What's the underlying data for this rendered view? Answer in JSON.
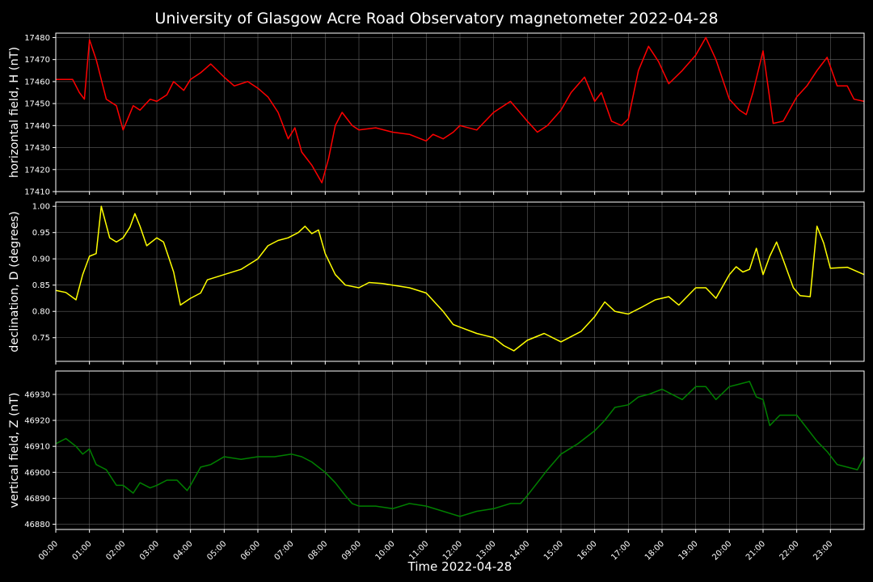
{
  "chart_data": {
    "type": "line",
    "title": "University of Glasgow Acre Road Observatory magnetometer 2022-04-28",
    "xlabel": "Time 2022-04-28",
    "x_unit": "hours",
    "xlim": [
      0,
      24
    ],
    "x_tick_labels": [
      "00:00",
      "01:00",
      "02:00",
      "03:00",
      "04:00",
      "05:00",
      "06:00",
      "07:00",
      "08:00",
      "09:00",
      "10:00",
      "11:00",
      "12:00",
      "13:00",
      "14:00",
      "15:00",
      "16:00",
      "17:00",
      "18:00",
      "19:00",
      "20:00",
      "21:00",
      "22:00",
      "23:00"
    ],
    "grid": true,
    "background": "#000000",
    "panels": [
      {
        "ylabel": "horizontal field, H (nT)",
        "color": "#ff0000",
        "ylim": [
          17410,
          17482
        ],
        "y_ticks": [
          17410,
          17420,
          17430,
          17440,
          17450,
          17460,
          17470,
          17480
        ],
        "series": [
          {
            "x": [
              0,
              0.5,
              0.7,
              0.85,
              1.0,
              1.2,
              1.5,
              1.8,
              2.0,
              2.3,
              2.5,
              2.8,
              3.0,
              3.3,
              3.5,
              3.8,
              4.0,
              4.3,
              4.6,
              5.0,
              5.3,
              5.7,
              6.0,
              6.3,
              6.6,
              6.9,
              7.1,
              7.3,
              7.6,
              7.9,
              8.1,
              8.3,
              8.5,
              8.8,
              9.0,
              9.5,
              10,
              10.5,
              11,
              11.2,
              11.5,
              11.8,
              12.0,
              12.5,
              13.0,
              13.5,
              14.0,
              14.3,
              14.6,
              15.0,
              15.3,
              15.7,
              16.0,
              16.2,
              16.5,
              16.8,
              17.0,
              17.3,
              17.6,
              17.9,
              18.2,
              18.6,
              19.0,
              19.3,
              19.6,
              20.0,
              20.3,
              20.5,
              20.7,
              21.0,
              21.3,
              21.6,
              22.0,
              22.3,
              22.6,
              22.9,
              23.2,
              23.5,
              23.7,
              24.0
            ],
            "y": [
              17461,
              17461,
              17455,
              17452,
              17479,
              17470,
              17452,
              17449,
              17438,
              17449,
              17447,
              17452,
              17451,
              17454,
              17460,
              17456,
              17461,
              17464,
              17468,
              17462,
              17458,
              17460,
              17457,
              17453,
              17446,
              17434,
              17439,
              17428,
              17422,
              17414,
              17425,
              17440,
              17446,
              17440,
              17438,
              17439,
              17437,
              17436,
              17433,
              17436,
              17434,
              17437,
              17440,
              17438,
              17446,
              17451,
              17442,
              17437,
              17440,
              17447,
              17455,
              17462,
              17451,
              17455,
              17442,
              17440,
              17443,
              17465,
              17476,
              17469,
              17459,
              17465,
              17472,
              17480,
              17470,
              17452,
              17447,
              17445,
              17455,
              17474,
              17441,
              17442,
              17453,
              17458,
              17465,
              17471,
              17458,
              17458,
              17452,
              17451
            ]
          }
        ]
      },
      {
        "ylabel": "declination, D (degrees)",
        "color": "#ffff00",
        "ylim": [
          0.705,
          1.008
        ],
        "y_ticks": [
          0.75,
          0.8,
          0.85,
          0.9,
          0.95,
          1.0
        ],
        "y_tick_labels": [
          "0.75",
          "0.80",
          "0.85",
          "0.90",
          "0.95",
          "1.00"
        ],
        "series": [
          {
            "x": [
              0,
              0.3,
              0.6,
              0.8,
              1.0,
              1.2,
              1.35,
              1.6,
              1.8,
              2.0,
              2.2,
              2.35,
              2.5,
              2.7,
              3.0,
              3.2,
              3.5,
              3.7,
              4.0,
              4.3,
              4.5,
              5.0,
              5.5,
              6.0,
              6.3,
              6.6,
              6.9,
              7.2,
              7.4,
              7.6,
              7.8,
              8.0,
              8.3,
              8.6,
              9.0,
              9.3,
              9.7,
              10.0,
              10.5,
              11.0,
              11.5,
              11.8,
              12.0,
              12.5,
              13.0,
              13.3,
              13.6,
              14.0,
              14.5,
              15.0,
              15.3,
              15.6,
              16.0,
              16.3,
              16.6,
              17.0,
              17.4,
              17.8,
              18.2,
              18.5,
              19.0,
              19.3,
              19.6,
              20.0,
              20.2,
              20.4,
              20.6,
              20.8,
              21.0,
              21.2,
              21.4,
              21.6,
              21.9,
              22.1,
              22.4,
              22.6,
              22.8,
              23.0,
              23.5,
              24.0
            ],
            "y": [
              0.84,
              0.836,
              0.822,
              0.87,
              0.905,
              0.91,
              1.0,
              0.94,
              0.932,
              0.94,
              0.96,
              0.986,
              0.962,
              0.925,
              0.94,
              0.932,
              0.875,
              0.812,
              0.825,
              0.835,
              0.86,
              0.87,
              0.88,
              0.9,
              0.925,
              0.935,
              0.94,
              0.95,
              0.962,
              0.948,
              0.955,
              0.91,
              0.87,
              0.85,
              0.845,
              0.855,
              0.853,
              0.85,
              0.845,
              0.835,
              0.8,
              0.775,
              0.77,
              0.758,
              0.75,
              0.735,
              0.725,
              0.745,
              0.758,
              0.742,
              0.752,
              0.762,
              0.79,
              0.818,
              0.8,
              0.795,
              0.808,
              0.822,
              0.828,
              0.812,
              0.845,
              0.845,
              0.825,
              0.87,
              0.885,
              0.875,
              0.88,
              0.92,
              0.87,
              0.905,
              0.932,
              0.898,
              0.845,
              0.83,
              0.828,
              0.962,
              0.93,
              0.882,
              0.884,
              0.87
            ]
          }
        ]
      },
      {
        "ylabel": "vertical field, Z (nT)",
        "color": "#008000",
        "ylim": [
          46878,
          46939
        ],
        "y_ticks": [
          46880,
          46890,
          46900,
          46910,
          46920,
          46930
        ],
        "series": [
          {
            "x": [
              0,
              0.3,
              0.6,
              0.8,
              1.0,
              1.2,
              1.5,
              1.8,
              2.0,
              2.3,
              2.5,
              2.8,
              3.0,
              3.3,
              3.6,
              3.9,
              4.0,
              4.3,
              4.6,
              5.0,
              5.5,
              6.0,
              6.5,
              7.0,
              7.3,
              7.6,
              8.0,
              8.3,
              8.6,
              8.8,
              9.0,
              9.5,
              10.0,
              10.5,
              11.0,
              11.5,
              12.0,
              12.5,
              13.0,
              13.5,
              13.8,
              14.0,
              14.3,
              14.6,
              15.0,
              15.5,
              16.0,
              16.3,
              16.6,
              17.0,
              17.3,
              17.6,
              18.0,
              18.3,
              18.6,
              19.0,
              19.3,
              19.6,
              20.0,
              20.3,
              20.6,
              20.8,
              21.0,
              21.2,
              21.5,
              22.0,
              22.3,
              22.6,
              22.9,
              23.2,
              23.5,
              23.8,
              24.0
            ],
            "y": [
              46911,
              46913,
              46910,
              46907,
              46909,
              46903,
              46901,
              46895,
              46895,
              46892,
              46896,
              46894,
              46895,
              46897,
              46897,
              46893,
              46895,
              46902,
              46903,
              46906,
              46905,
              46906,
              46906,
              46907,
              46906,
              46904,
              46900,
              46896,
              46891,
              46888,
              46887,
              46887,
              46886,
              46888,
              46887,
              46885,
              46883,
              46885,
              46886,
              46888,
              46888,
              46891,
              46896,
              46901,
              46907,
              46911,
              46916,
              46920,
              46925,
              46926,
              46929,
              46930,
              46932,
              46930,
              46928,
              46933,
              46933,
              46928,
              46933,
              46934,
              46935,
              46929,
              46928,
              46918,
              46922,
              46922,
              46917,
              46912,
              46908,
              46903,
              46902,
              46901,
              46906
            ]
          }
        ]
      }
    ]
  }
}
